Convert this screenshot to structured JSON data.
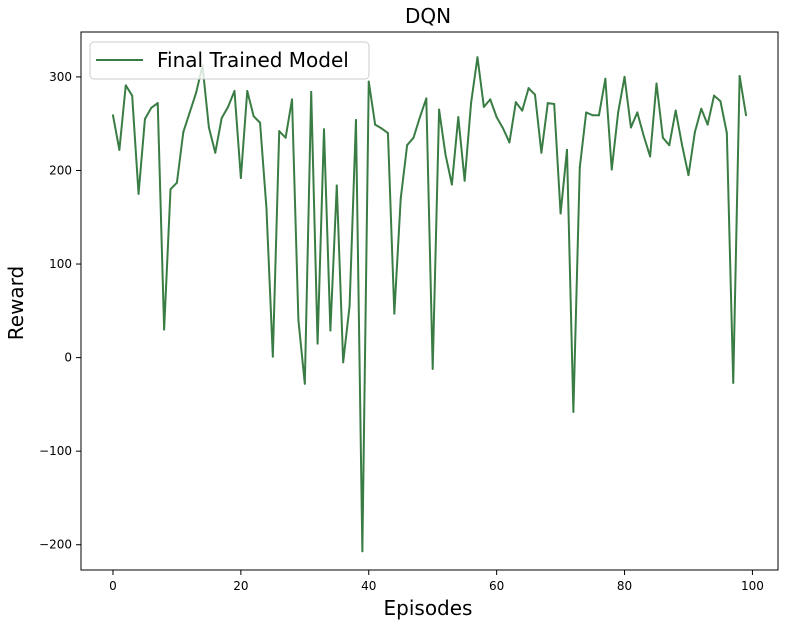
{
  "chart_data": {
    "type": "line",
    "title": "DQN",
    "xlabel": "Episodes",
    "ylabel": "Reward",
    "xlim": [
      -5,
      104
    ],
    "ylim": [
      -227,
      348
    ],
    "xticks": [
      0,
      20,
      40,
      60,
      80,
      100
    ],
    "yticks": [
      -200,
      -100,
      0,
      100,
      200,
      300
    ],
    "xtick_labels": [
      "0",
      "20",
      "40",
      "60",
      "80",
      "100"
    ],
    "ytick_labels": [
      "−200",
      "−100",
      "0",
      "100",
      "200",
      "300"
    ],
    "grid": false,
    "legend_position": "top-left",
    "series": [
      {
        "name": "Final Trained Model",
        "color": "#3a7d44",
        "x": [
          0,
          1,
          2,
          3,
          4,
          5,
          6,
          7,
          8,
          9,
          10,
          11,
          12,
          13,
          14,
          15,
          16,
          17,
          18,
          19,
          20,
          21,
          22,
          23,
          24,
          25,
          26,
          27,
          28,
          29,
          30,
          31,
          32,
          33,
          34,
          35,
          36,
          37,
          38,
          39,
          40,
          41,
          42,
          43,
          44,
          45,
          46,
          47,
          48,
          49,
          50,
          51,
          52,
          53,
          54,
          55,
          56,
          57,
          58,
          59,
          60,
          61,
          62,
          63,
          64,
          65,
          66,
          67,
          68,
          69,
          70,
          71,
          72,
          73,
          74,
          75,
          76,
          77,
          78,
          79,
          80,
          81,
          82,
          83,
          84,
          85,
          86,
          87,
          88,
          89,
          90,
          91,
          92,
          93,
          94,
          95,
          96,
          97,
          98,
          99
        ],
        "values": [
          259,
          222,
          291,
          280,
          175,
          255,
          267,
          272,
          30,
          180,
          187,
          241,
          262,
          283,
          312,
          246,
          219,
          256,
          268,
          285,
          192,
          285,
          258,
          251,
          160,
          1,
          242,
          235,
          276,
          40,
          -28,
          284,
          15,
          244,
          29,
          184,
          -5,
          55,
          254,
          -207,
          295,
          249,
          245,
          240,
          47,
          170,
          227,
          235,
          257,
          277,
          -12,
          265,
          217,
          185,
          257,
          189,
          272,
          321,
          268,
          276,
          257,
          245,
          230,
          273,
          264,
          288,
          281,
          219,
          272,
          271,
          154,
          222,
          -58,
          203,
          262,
          259,
          259,
          298,
          201,
          262,
          300,
          246,
          262,
          237,
          215,
          293,
          235,
          227,
          264,
          227,
          195,
          241,
          266,
          249,
          280,
          274,
          240,
          -27,
          301,
          259
        ]
      }
    ]
  }
}
